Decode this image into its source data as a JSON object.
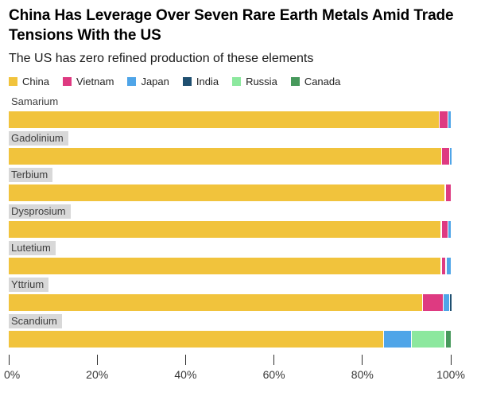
{
  "header": {
    "title": "China Has Leverage Over Seven Rare Earth Metals Amid Trade Tensions With the US",
    "subtitle": "The US has zero refined production of these elements"
  },
  "legend": {
    "items": [
      {
        "name": "China",
        "color": "#F1C33C"
      },
      {
        "name": "Vietnam",
        "color": "#DE3A81"
      },
      {
        "name": "Japan",
        "color": "#4FA5E8"
      },
      {
        "name": "India",
        "color": "#1F4F70"
      },
      {
        "name": "Russia",
        "color": "#8CE89E"
      },
      {
        "name": "Canada",
        "color": "#47995C"
      }
    ]
  },
  "chart_data": {
    "type": "bar",
    "orientation": "horizontal",
    "stacked": true,
    "unit": "percent",
    "title": "China Has Leverage Over Seven Rare Earth Metals Amid Trade Tensions With the US",
    "subtitle": "The US has zero refined production of these elements",
    "xlabel": "",
    "ylabel": "",
    "xlim": [
      0,
      100
    ],
    "grid": false,
    "legend_position": "top",
    "series_colors": {
      "China": "#F1C33C",
      "Vietnam": "#DE3A81",
      "Japan": "#4FA5E8",
      "India": "#1F4F70",
      "Russia": "#8CE89E",
      "Canada": "#47995C"
    },
    "categories": [
      "Samarium",
      "Gadolinium",
      "Terbium",
      "Dysprosium",
      "Lutetium",
      "Yttrium",
      "Scandium"
    ],
    "rows": [
      {
        "category": "Samarium",
        "label_highlighted": false,
        "segments": [
          {
            "series": "China",
            "value": 97.3
          },
          {
            "series": "Vietnam",
            "value": 1.9
          },
          {
            "series": "Japan",
            "value": 0.8
          }
        ]
      },
      {
        "category": "Gadolinium",
        "label_highlighted": true,
        "segments": [
          {
            "series": "China",
            "value": 97.8
          },
          {
            "series": "Vietnam",
            "value": 1.8
          },
          {
            "series": "Japan",
            "value": 0.4
          }
        ]
      },
      {
        "category": "Terbium",
        "label_highlighted": true,
        "segments": [
          {
            "series": "China",
            "value": 98.6
          },
          {
            "series": "Vietnam",
            "value": 1.4
          }
        ]
      },
      {
        "category": "Dysprosium",
        "label_highlighted": true,
        "segments": [
          {
            "series": "China",
            "value": 97.7
          },
          {
            "series": "Vietnam",
            "value": 1.5
          },
          {
            "series": "Japan",
            "value": 0.8
          }
        ]
      },
      {
        "category": "Lutetium",
        "label_highlighted": true,
        "segments": [
          {
            "series": "China",
            "value": 97.7
          },
          {
            "series": "Vietnam",
            "value": 1.1
          },
          {
            "series": "Japan",
            "value": 1.2
          }
        ]
      },
      {
        "category": "Yttrium",
        "label_highlighted": true,
        "segments": [
          {
            "series": "China",
            "value": 93.5
          },
          {
            "series": "Vietnam",
            "value": 4.7
          },
          {
            "series": "Japan",
            "value": 1.4
          },
          {
            "series": "India",
            "value": 0.4
          }
        ]
      },
      {
        "category": "Scandium",
        "label_highlighted": true,
        "segments": [
          {
            "series": "China",
            "value": 84.7
          },
          {
            "series": "Japan",
            "value": 6.3
          },
          {
            "series": "Russia",
            "value": 7.6
          },
          {
            "series": "Canada",
            "value": 1.4
          }
        ]
      }
    ],
    "xticks": [
      {
        "value": 0,
        "label": "0%"
      },
      {
        "value": 20,
        "label": "20%"
      },
      {
        "value": 40,
        "label": "40%"
      },
      {
        "value": 60,
        "label": "60%"
      },
      {
        "value": 80,
        "label": "80%"
      },
      {
        "value": 100,
        "label": "100%"
      }
    ]
  }
}
